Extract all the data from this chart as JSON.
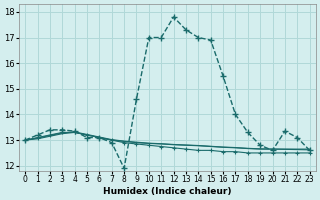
{
  "xlabel": "Humidex (Indice chaleur)",
  "ylabel": "",
  "background_color": "#d4eeee",
  "grid_color": "#b0d8d8",
  "line_color": "#1a6b6b",
  "xlim": [
    -0.5,
    23.5
  ],
  "ylim": [
    11.8,
    18.3
  ],
  "yticks": [
    12,
    13,
    14,
    15,
    16,
    17,
    18
  ],
  "xtick_labels": [
    "0",
    "1",
    "2",
    "3",
    "4",
    "5",
    "6",
    "7",
    "8",
    "9",
    "10",
    "11",
    "12",
    "13",
    "14",
    "15",
    "16",
    "17",
    "18",
    "19",
    "20",
    "21",
    "22",
    "23"
  ],
  "line1_x": [
    0,
    1,
    2,
    3,
    4,
    5,
    6,
    7,
    8,
    9,
    10,
    11,
    12,
    13,
    14,
    15,
    16,
    17,
    18,
    19,
    20,
    21,
    22,
    23
  ],
  "line1_y": [
    13.0,
    13.2,
    13.4,
    13.4,
    13.35,
    13.1,
    13.1,
    12.9,
    11.9,
    14.6,
    17.0,
    17.0,
    17.8,
    17.3,
    17.0,
    16.9,
    15.5,
    14.0,
    13.3,
    12.8,
    12.6,
    13.35,
    13.1,
    12.6
  ],
  "line2_x": [
    0,
    1,
    2,
    3,
    4,
    5,
    6,
    7,
    8,
    9,
    10,
    11,
    12,
    13,
    14,
    15,
    16,
    17,
    18,
    19,
    20,
    21,
    22,
    23
  ],
  "line2_y": [
    13.0,
    13.1,
    13.2,
    13.3,
    13.3,
    13.2,
    13.1,
    13.0,
    12.9,
    12.85,
    12.8,
    12.75,
    12.7,
    12.65,
    12.6,
    12.6,
    12.55,
    12.55,
    12.5,
    12.5,
    12.5,
    12.5,
    12.5,
    12.5
  ],
  "line3_x": [
    0,
    1,
    2,
    3,
    4,
    5,
    6,
    7,
    8,
    9,
    10,
    11,
    12,
    13,
    14,
    15,
    16,
    17,
    18,
    19,
    20,
    21,
    22,
    23
  ],
  "line3_y": [
    13.0,
    13.05,
    13.15,
    13.25,
    13.3,
    13.2,
    13.1,
    13.0,
    12.95,
    12.9,
    12.87,
    12.85,
    12.82,
    12.8,
    12.78,
    12.75,
    12.72,
    12.7,
    12.67,
    12.65,
    12.65,
    12.65,
    12.65,
    12.65
  ],
  "line4_x": [
    0,
    1,
    2,
    3,
    4,
    5,
    6,
    7,
    8,
    9,
    10,
    11,
    12,
    13,
    14,
    15,
    16,
    17,
    18,
    19,
    20,
    21,
    22,
    23
  ],
  "line4_y": [
    13.0,
    13.08,
    13.18,
    13.28,
    13.32,
    13.22,
    13.12,
    13.02,
    12.96,
    12.92,
    12.88,
    12.86,
    12.83,
    12.81,
    12.79,
    12.76,
    12.73,
    12.71,
    12.68,
    12.66,
    12.65,
    12.64,
    12.63,
    12.62
  ]
}
